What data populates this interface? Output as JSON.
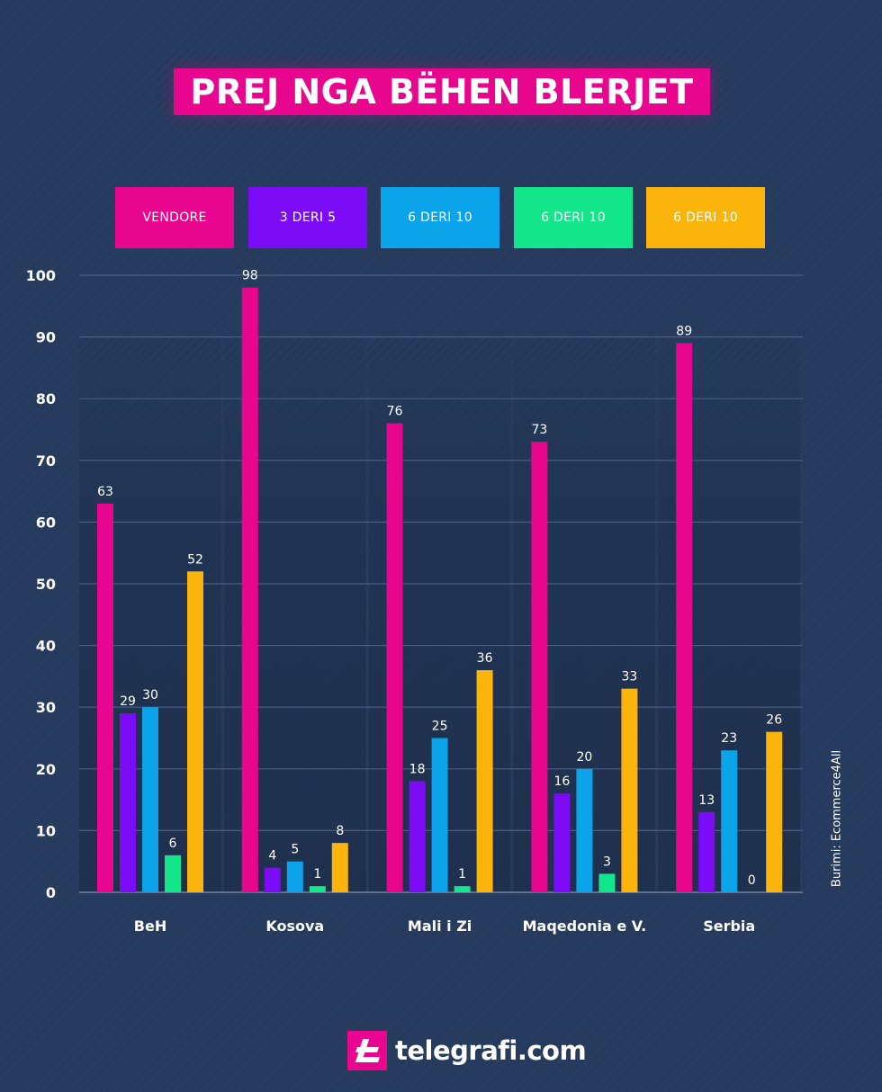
{
  "chart_data": {
    "type": "bar",
    "title": "PREJ NGA BËHEN BLERJET",
    "categories": [
      "BeH",
      "Kosova",
      "Mali i Zi",
      "Maqedonia e V.",
      "Serbia"
    ],
    "series": [
      {
        "name": "VENDORE",
        "color": "#e8068f",
        "values": [
          63,
          98,
          76,
          73,
          89
        ]
      },
      {
        "name": "3 DERI 5",
        "color": "#7b0cf5",
        "values": [
          29,
          4,
          18,
          16,
          13
        ]
      },
      {
        "name": "6 DERI 10",
        "color": "#0ba3ea",
        "values": [
          30,
          5,
          25,
          20,
          23
        ]
      },
      {
        "name": "6 DERI 10",
        "color": "#13e58a",
        "values": [
          6,
          1,
          1,
          3,
          0
        ]
      },
      {
        "name": "6 DERI 10",
        "color": "#fbb40b",
        "values": [
          52,
          8,
          36,
          33,
          26
        ]
      }
    ],
    "ylim": [
      0,
      100
    ],
    "yticks": [
      "0",
      "10",
      "20",
      "30",
      "40",
      "50",
      "60",
      "70",
      "80",
      "90",
      "100"
    ],
    "grid": true,
    "legend_position": "top"
  },
  "source": "Burimi: Ecommerce4All",
  "brand": "telegrafi.com"
}
